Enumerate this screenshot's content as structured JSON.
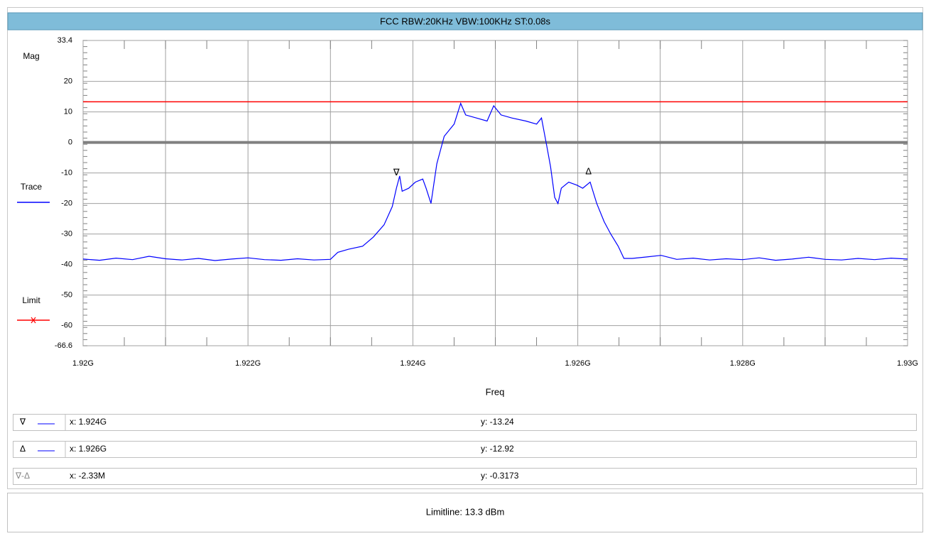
{
  "chart_data": {
    "type": "line",
    "title": "FCC  RBW:20KHz VBW:100KHz ST:0.08s",
    "y_label": "Mag",
    "x_label": "Freq",
    "x": [
      1.92,
      1.9202,
      1.9204,
      1.9206,
      1.9208,
      1.921,
      1.9212,
      1.9214,
      1.9216,
      1.9218,
      1.922,
      1.9222,
      1.9224,
      1.9226,
      1.9228,
      1.923,
      1.92309,
      1.92322,
      1.92339,
      1.92352,
      1.92365,
      1.92375,
      1.9238,
      1.92384,
      1.92387,
      1.92395,
      1.92403,
      1.92412,
      1.92416,
      1.92422,
      1.92429,
      1.92438,
      1.9245,
      1.92458,
      1.92464,
      1.92477,
      1.9249,
      1.92498,
      1.92507,
      1.9252,
      1.92537,
      1.9255,
      1.92556,
      1.92563,
      1.92567,
      1.92572,
      1.92576,
      1.9258,
      1.92589,
      1.92599,
      1.92606,
      1.92615,
      1.92623,
      1.92632,
      1.9264,
      1.92649,
      1.92656,
      1.92666,
      1.92684,
      1.92701,
      1.9272,
      1.9274,
      1.9276,
      1.9278,
      1.928,
      1.9282,
      1.9284,
      1.9286,
      1.9288,
      1.929,
      1.9292,
      1.9294,
      1.9296,
      1.9298,
      1.93
    ],
    "series": [
      {
        "name": "Trace",
        "color": "#0000ff",
        "values": [
          -38.2,
          -38.6,
          -37.9,
          -38.4,
          -37.3,
          -38.1,
          -38.5,
          -38.0,
          -38.7,
          -38.2,
          -37.8,
          -38.4,
          -38.6,
          -38.1,
          -38.5,
          -38.3,
          -36,
          -35,
          -34,
          -31,
          -27,
          -21,
          -15,
          -11,
          -16,
          -15,
          -13,
          -12,
          -15,
          -20,
          -7,
          2,
          6,
          12.8,
          9,
          8,
          7,
          12,
          9,
          8,
          7,
          6,
          8,
          -2,
          -8,
          -18,
          -20,
          -15,
          -13,
          -14,
          -15,
          -13,
          -20,
          -26,
          -30,
          -34,
          -38,
          -38,
          -37.5,
          -37,
          -38.3,
          -37.9,
          -38.5,
          -38.1,
          -38.4,
          -37.8,
          -38.6,
          -38.2,
          -37.6,
          -38.3,
          -38.5,
          -38.0,
          -38.4,
          -37.9,
          -38.2
        ]
      }
    ],
    "limit": {
      "name": "Limit",
      "value": 13.3,
      "color": "#ff0000"
    },
    "xlim": [
      1.92,
      1.93
    ],
    "xticks": [
      {
        "value": 1.92,
        "label": "1.92G"
      },
      {
        "value": 1.922,
        "label": "1.922G"
      },
      {
        "value": 1.924,
        "label": "1.924G"
      },
      {
        "value": 1.926,
        "label": "1.926G"
      },
      {
        "value": 1.928,
        "label": "1.928G"
      },
      {
        "value": 1.93,
        "label": "1.93G"
      }
    ],
    "ylim": [
      -66.6,
      33.4
    ],
    "yticks": [
      33.4,
      20,
      10,
      0,
      -10,
      -20,
      -30,
      -40,
      -50,
      -60,
      -66.6
    ],
    "grid": true,
    "markers": [
      {
        "symbol": "∇",
        "x": 1.9238,
        "x_label": "x: 1.924G",
        "y": -13.24,
        "y_label": "y: -13.24"
      },
      {
        "symbol": "Δ",
        "x": 1.92613,
        "x_label": "x: 1.926G",
        "y": -12.92,
        "y_label": "y: -12.92"
      }
    ]
  },
  "delta": {
    "symbol": "∇-Δ",
    "x_label": "x: -2.33M",
    "y_label": "y: -0.3173"
  },
  "footer": "Limitline: 13.3 dBm"
}
